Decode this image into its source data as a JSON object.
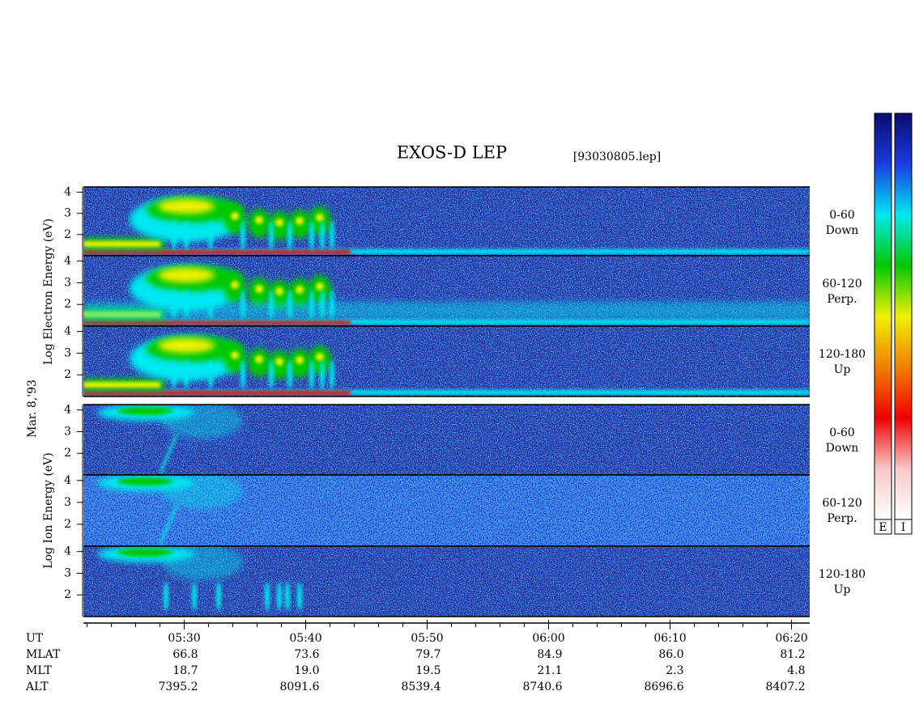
{
  "chart_data": {
    "type": "spectrogram",
    "title": "EXOS-D LEP",
    "subtitle": "[93030805.lep]",
    "date": "Mar. 8,'93",
    "groups": [
      {
        "ylabel": "Log Electron Energy (eV)",
        "colorbar": "E",
        "panels": [
          {
            "angle": "0-60",
            "direction": "Down"
          },
          {
            "angle": "60-120",
            "direction": "Perp."
          },
          {
            "angle": "120-180",
            "direction": "Up"
          }
        ]
      },
      {
        "ylabel": "Log Ion Energy (eV)",
        "colorbar": "I",
        "panels": [
          {
            "angle": "0-60",
            "direction": "Down"
          },
          {
            "angle": "60-120",
            "direction": "Perp."
          },
          {
            "angle": "120-180",
            "direction": "Up"
          }
        ]
      }
    ],
    "ylim": [
      1,
      4.25
    ],
    "yticks": [
      2,
      3,
      4
    ],
    "xlim": [
      321.7,
      381.5
    ],
    "xticks": [
      {
        "value": 330,
        "label": "05:30"
      },
      {
        "value": 340,
        "label": "05:40"
      },
      {
        "value": 350,
        "label": "05:50"
      },
      {
        "value": 360,
        "label": "06:00"
      },
      {
        "value": 370,
        "label": "06:10"
      },
      {
        "value": 380,
        "label": "06:20"
      }
    ],
    "xminorticks": [
      322,
      324,
      326,
      328,
      332,
      334,
      336,
      338,
      342,
      344,
      346,
      348,
      352,
      354,
      356,
      358,
      362,
      364,
      366,
      368,
      372,
      374,
      376,
      378
    ],
    "colormap": [
      "#ffffff",
      "#f8c8c8",
      "#f00000",
      "#f08000",
      "#f0f000",
      "#00c800",
      "#00e8f0",
      "#1a3ce0",
      "#0a0a70"
    ],
    "ephemeris": {
      "time_label": "UT",
      "rows": [
        {
          "label": "MLAT",
          "values": [
            "66.8",
            "73.6",
            "79.7",
            "84.9",
            "86.0",
            "81.2"
          ]
        },
        {
          "label": "MLT",
          "values": [
            "18.7",
            "19.0",
            "19.5",
            "21.1",
            "2.3",
            "4.8"
          ]
        },
        {
          "label": "ALT",
          "values": [
            "7395.2",
            "8091.6",
            "8539.4",
            "8740.6",
            "8696.6",
            "8407.2"
          ]
        }
      ]
    }
  }
}
